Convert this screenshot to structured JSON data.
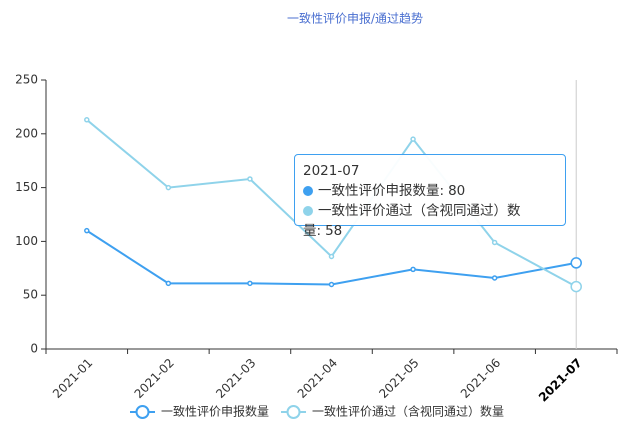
{
  "chart_data": {
    "type": "line",
    "title": "一致性评价申报/通过趋势",
    "categories": [
      "2021-01",
      "2021-02",
      "2021-03",
      "2021-04",
      "2021-05",
      "2021-06",
      "2021-07"
    ],
    "series": [
      {
        "name": "一致性评价申报数量",
        "color": "#3ea0f0",
        "values": [
          110,
          61,
          61,
          60,
          74,
          66,
          80
        ]
      },
      {
        "name": "一致性评价通过（含视同通过）数量",
        "color": "#8fd3ea",
        "values": [
          213,
          150,
          158,
          86,
          195,
          99,
          58
        ]
      }
    ],
    "ylim": [
      0,
      250
    ],
    "yticks": [
      0,
      50,
      100,
      150,
      200,
      250
    ],
    "tooltip_separator": ":"
  }
}
